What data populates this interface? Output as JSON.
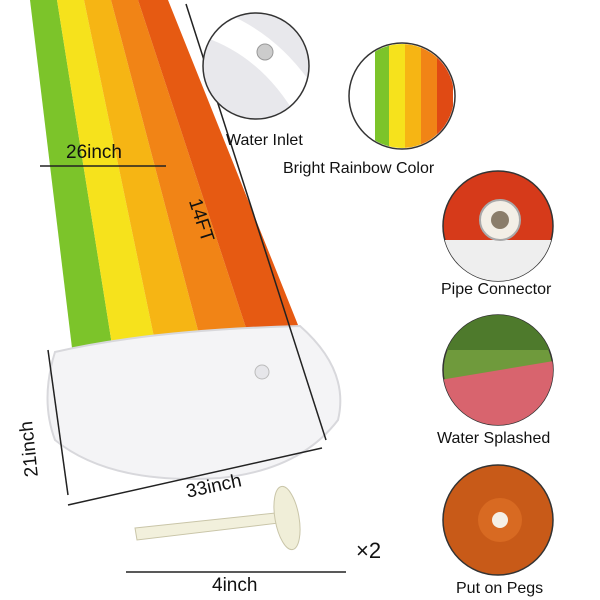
{
  "dimensions": {
    "width": "26inch",
    "length": "14FT",
    "pool_depth": "21inch",
    "pool_width": "33inch",
    "peg_length": "4inch",
    "peg_quantity": "×2"
  },
  "features": [
    {
      "label": "Water Inlet",
      "icon": "water-inlet-valve"
    },
    {
      "label": "Bright Rainbow Color",
      "icon": "rainbow-stripes"
    },
    {
      "label": "Pipe Connector",
      "icon": "pipe-connector"
    },
    {
      "label": "Water Splashed",
      "icon": "lawn-splash"
    },
    {
      "label": "Put on Pegs",
      "icon": "peg-hole"
    }
  ],
  "colors": {
    "green": "#7cc42a",
    "yellow": "#f6e21c",
    "amber": "#f6b514",
    "orange": "#f18416",
    "red": "#e65a12"
  }
}
